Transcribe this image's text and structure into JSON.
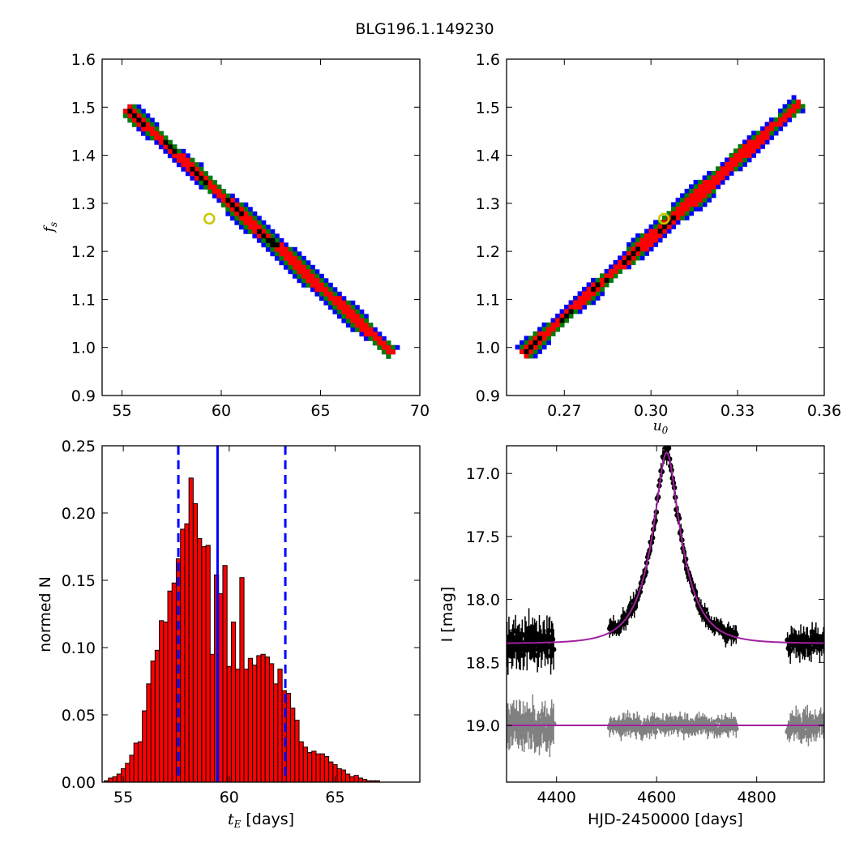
{
  "figure_title": "BLG196.1.149230",
  "chart_data": [
    {
      "type": "heatmap",
      "id": "tE_vs_fs",
      "xlabel": "",
      "ylabel": "f_s",
      "xlim": [
        54,
        70
      ],
      "ylim": [
        0.9,
        1.6
      ],
      "xticks": [
        55,
        60,
        65,
        70
      ],
      "yticks": [
        0.9,
        1.0,
        1.1,
        1.2,
        1.3,
        1.4,
        1.5,
        1.6
      ],
      "xtick_labels": [
        "55",
        "60",
        "65",
        "70"
      ],
      "ytick_labels": [
        "0.9",
        "1.0",
        "1.1",
        "1.2",
        "1.3",
        "1.4",
        "1.5",
        "1.6"
      ],
      "band_start": [
        55.2,
        1.5
      ],
      "band_end": [
        68.7,
        0.985
      ],
      "colors": {
        "outer": "#0000ff",
        "middle": "#008000",
        "inner": "#ff0000",
        "core": "#000000"
      },
      "best_fit": {
        "x": 59.4,
        "y": 1.268
      }
    },
    {
      "type": "heatmap",
      "id": "u0_vs_fs",
      "xlabel": "u_0",
      "ylabel": "",
      "xlim": [
        0.25,
        0.36
      ],
      "ylim": [
        0.9,
        1.6
      ],
      "xticks": [
        0.27,
        0.3,
        0.33,
        0.36
      ],
      "yticks": [
        0.9,
        1.0,
        1.1,
        1.2,
        1.3,
        1.4,
        1.5,
        1.6
      ],
      "xtick_labels": [
        "0.27",
        "0.30",
        "0.33",
        "0.36"
      ],
      "ytick_labels": [
        "0.9",
        "1.0",
        "1.1",
        "1.2",
        "1.3",
        "1.4",
        "1.5",
        "1.6"
      ],
      "band_start": [
        0.2555,
        0.985
      ],
      "band_end": [
        0.3515,
        1.51
      ],
      "colors": {
        "outer": "#0000ff",
        "middle": "#008000",
        "inner": "#ff0000",
        "core": "#000000"
      },
      "best_fit": {
        "x": 0.3045,
        "y": 1.268
      }
    },
    {
      "type": "bar",
      "id": "tE_histogram",
      "xlabel": "t_E",
      "xlabel_suffix": " [days]",
      "ylabel": "normed N",
      "xlim": [
        54,
        69
      ],
      "ylim": [
        0,
        0.25
      ],
      "xticks": [
        55,
        60,
        65
      ],
      "yticks": [
        0.0,
        0.05,
        0.1,
        0.15,
        0.2,
        0.25
      ],
      "xtick_labels": [
        "55",
        "60",
        "65"
      ],
      "ytick_labels": [
        "0.00",
        "0.05",
        "0.10",
        "0.15",
        "0.20",
        "0.25"
      ],
      "bin_start": 54.1,
      "bin_width": 0.2,
      "values": [
        0.001,
        0.003,
        0.004,
        0.006,
        0.01,
        0.014,
        0.02,
        0.029,
        0.03,
        0.053,
        0.073,
        0.09,
        0.098,
        0.12,
        0.119,
        0.142,
        0.148,
        0.166,
        0.188,
        0.192,
        0.226,
        0.207,
        0.181,
        0.175,
        0.176,
        0.095,
        0.154,
        0.14,
        0.161,
        0.086,
        0.119,
        0.084,
        0.152,
        0.084,
        0.092,
        0.087,
        0.094,
        0.095,
        0.093,
        0.088,
        0.073,
        0.084,
        0.068,
        0.066,
        0.055,
        0.046,
        0.03,
        0.026,
        0.022,
        0.023,
        0.021,
        0.021,
        0.019,
        0.015,
        0.013,
        0.01,
        0.009,
        0.006,
        0.004,
        0.005,
        0.003,
        0.002,
        0.001,
        0.001,
        0.001
      ],
      "bar_color": "#ff0000",
      "median": 59.45,
      "lower": 57.6,
      "upper": 62.65,
      "line_color": "#0000ff"
    },
    {
      "type": "scatter",
      "id": "light_curve",
      "xlabel": "HJD-2450000 [days]",
      "ylabel": "I [mag]",
      "xlim": [
        4300,
        4935
      ],
      "ylim": [
        19.45,
        16.78
      ],
      "xticks": [
        4400,
        4600,
        4800
      ],
      "yticks": [
        17.0,
        17.5,
        18.0,
        18.5,
        19.0
      ],
      "xtick_labels": [
        "4400",
        "4600",
        "4800"
      ],
      "ytick_labels": [
        "17.0",
        "17.5",
        "18.0",
        "18.5",
        "19.0"
      ],
      "model": {
        "t0": 4620,
        "tE": 59.4,
        "u0": 0.3045,
        "fs": 1.268,
        "baseline_mag": 18.35,
        "residual_offset": 19.0
      },
      "data_color": "#000000",
      "residual_color": "#808080",
      "model_color": "#a020a0",
      "gaps": [
        [
          4395,
          4505
        ],
        [
          4760,
          4860
        ]
      ],
      "data_x": [
        4300,
        4935
      ]
    }
  ]
}
